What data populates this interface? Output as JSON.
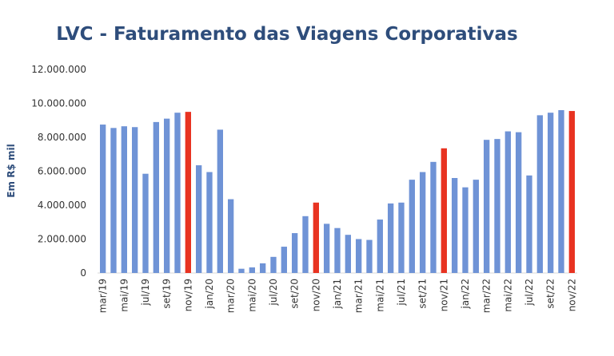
{
  "chart_data": {
    "type": "bar",
    "title": "LVC - Faturamento das Viagens Corporativas",
    "xlabel": "",
    "ylabel": "Em R$ mil",
    "ylim": [
      0,
      12000000
    ],
    "yticks": [
      "0",
      "2.000.000",
      "4.000.000",
      "6.000.000",
      "8.000.000",
      "10.000.000",
      "12.000.000"
    ],
    "categories": [
      "mar/19",
      "abr/19",
      "mai/19",
      "jun/19",
      "jul/19",
      "ago/19",
      "set/19",
      "out/19",
      "nov/19",
      "dez/19",
      "jan/20",
      "fev/20",
      "mar/20",
      "abr/20",
      "mai/20",
      "jun/20",
      "jul/20",
      "ago/20",
      "set/20",
      "out/20",
      "nov/20",
      "dez/20",
      "jan/21",
      "fev/21",
      "mar/21",
      "abr/21",
      "mai/21",
      "jun/21",
      "jul/21",
      "ago/21",
      "set/21",
      "out/21",
      "nov/21",
      "dez/21",
      "jan/22",
      "fev/22",
      "mar/22",
      "abr/22",
      "mai/22",
      "jun/22",
      "jul/22",
      "ago/22",
      "set/22",
      "out/22",
      "nov/22"
    ],
    "values": [
      8750000,
      8550000,
      8650000,
      8600000,
      5850000,
      8900000,
      9100000,
      9450000,
      9500000,
      6350000,
      5950000,
      8450000,
      4350000,
      250000,
      330000,
      570000,
      950000,
      1550000,
      2350000,
      3350000,
      4150000,
      2900000,
      2650000,
      2250000,
      2000000,
      1950000,
      3150000,
      4100000,
      4150000,
      5500000,
      5950000,
      6550000,
      7350000,
      5600000,
      5050000,
      5500000,
      7850000,
      7900000,
      8350000,
      8300000,
      5750000,
      9300000,
      9450000,
      9600000,
      9550000
    ],
    "highlighted": [
      "nov/19",
      "nov/20",
      "nov/21",
      "nov/22"
    ],
    "colors": {
      "bar": "#6f93d6",
      "highlight": "#e83321",
      "title": "#2e4d7b"
    },
    "grid": false,
    "legend": "none"
  }
}
